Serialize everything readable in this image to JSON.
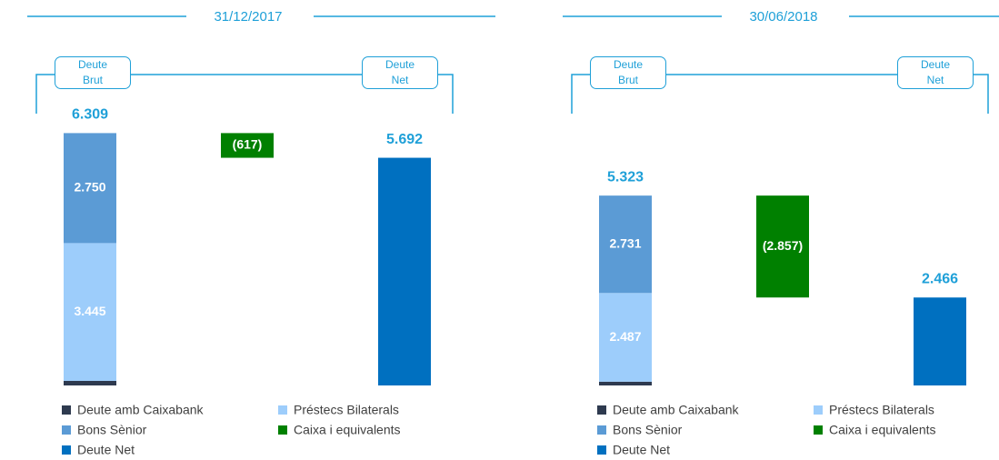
{
  "chart_data": [
    {
      "type": "waterfall",
      "title": "31/12/2017",
      "bracket_labels": [
        "Deute Brut",
        "Deute Net"
      ],
      "total": 6309,
      "total_label": "6.309",
      "ylim": [
        0,
        7000
      ],
      "series": [
        {
          "name": "Deute amb Caixabank",
          "color": "#2e3a4f",
          "values": [
            114
          ],
          "value_labels": [
            "114"
          ]
        },
        {
          "name": "Préstecs Bilaterals",
          "color": "#9dcdfb",
          "values": [
            3445
          ],
          "value_labels": [
            "3.445"
          ]
        },
        {
          "name": "Bons Sènior",
          "color": "#5b9bd5",
          "values": [
            2750
          ],
          "value_labels": [
            "2.750"
          ]
        },
        {
          "name": "Caixa i equivalents",
          "color": "#008000",
          "values": [
            -617
          ],
          "value_labels": [
            "(617)"
          ]
        },
        {
          "name": "Deute Net",
          "color": "#0070c0",
          "values": [
            5692
          ],
          "value_labels": [
            "5.692"
          ]
        }
      ]
    },
    {
      "type": "waterfall",
      "title": "30/06/2018",
      "bracket_labels": [
        "Deute Brut",
        "Deute Net"
      ],
      "total": 5323,
      "total_label": "5.323",
      "ylim": [
        0,
        7850
      ],
      "series": [
        {
          "name": "Deute amb Caixabank",
          "color": "#2e3a4f",
          "values": [
            105
          ],
          "value_labels": [
            "105"
          ]
        },
        {
          "name": "Préstecs Bilaterals",
          "color": "#9dcdfb",
          "values": [
            2487
          ],
          "value_labels": [
            "2.487"
          ]
        },
        {
          "name": "Bons Sènior",
          "color": "#5b9bd5",
          "values": [
            2731
          ],
          "value_labels": [
            "2.731"
          ]
        },
        {
          "name": "Caixa i equivalents",
          "color": "#008000",
          "values": [
            -2857
          ],
          "value_labels": [
            "(2.857)"
          ]
        },
        {
          "name": "Deute Net",
          "color": "#0070c0",
          "values": [
            2466
          ],
          "value_labels": [
            "2.466"
          ]
        }
      ]
    }
  ]
}
